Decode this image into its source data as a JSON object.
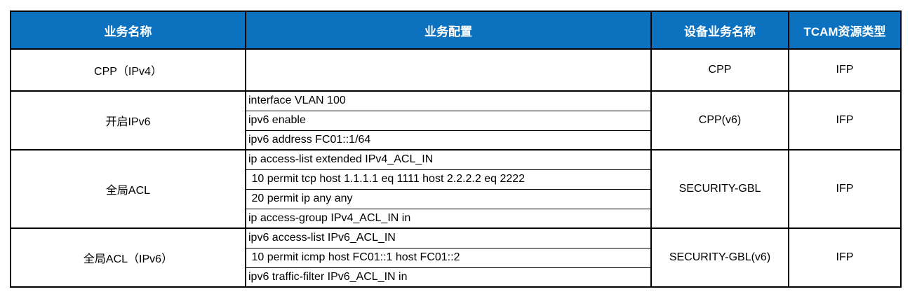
{
  "colors": {
    "header_bg": "#0c72bf",
    "header_text": "#ffffff",
    "border": "#000000",
    "body_text": "#000000",
    "page_bg": "#ffffff"
  },
  "table": {
    "headers": [
      "业务名称",
      "业务配置",
      "设备业务名称",
      "TCAM资源类型"
    ],
    "rows": [
      {
        "service": "CPP（IPv4）",
        "configs": [
          ""
        ],
        "device_service": "CPP",
        "tcam_type": "IFP"
      },
      {
        "service": "开启IPv6",
        "configs": [
          "interface VLAN 100",
          "ipv6 enable",
          "ipv6 address FC01::1/64"
        ],
        "device_service": "CPP(v6)",
        "tcam_type": "IFP"
      },
      {
        "service": "全局ACL",
        "configs": [
          "ip access-list extended IPv4_ACL_IN",
          " 10 permit tcp host 1.1.1.1 eq 1111 host 2.2.2.2 eq 2222",
          " 20 permit ip any any",
          "ip access-group IPv4_ACL_IN in"
        ],
        "device_service": "SECURITY-GBL",
        "tcam_type": "IFP"
      },
      {
        "service": "全局ACL（IPv6）",
        "configs": [
          "ipv6 access-list IPv6_ACL_IN",
          " 10 permit icmp host FC01::1 host FC01::2",
          "ipv6 traffic-filter IPv6_ACL_IN in"
        ],
        "device_service": "SECURITY-GBL(v6)",
        "tcam_type": "IFP"
      }
    ]
  }
}
